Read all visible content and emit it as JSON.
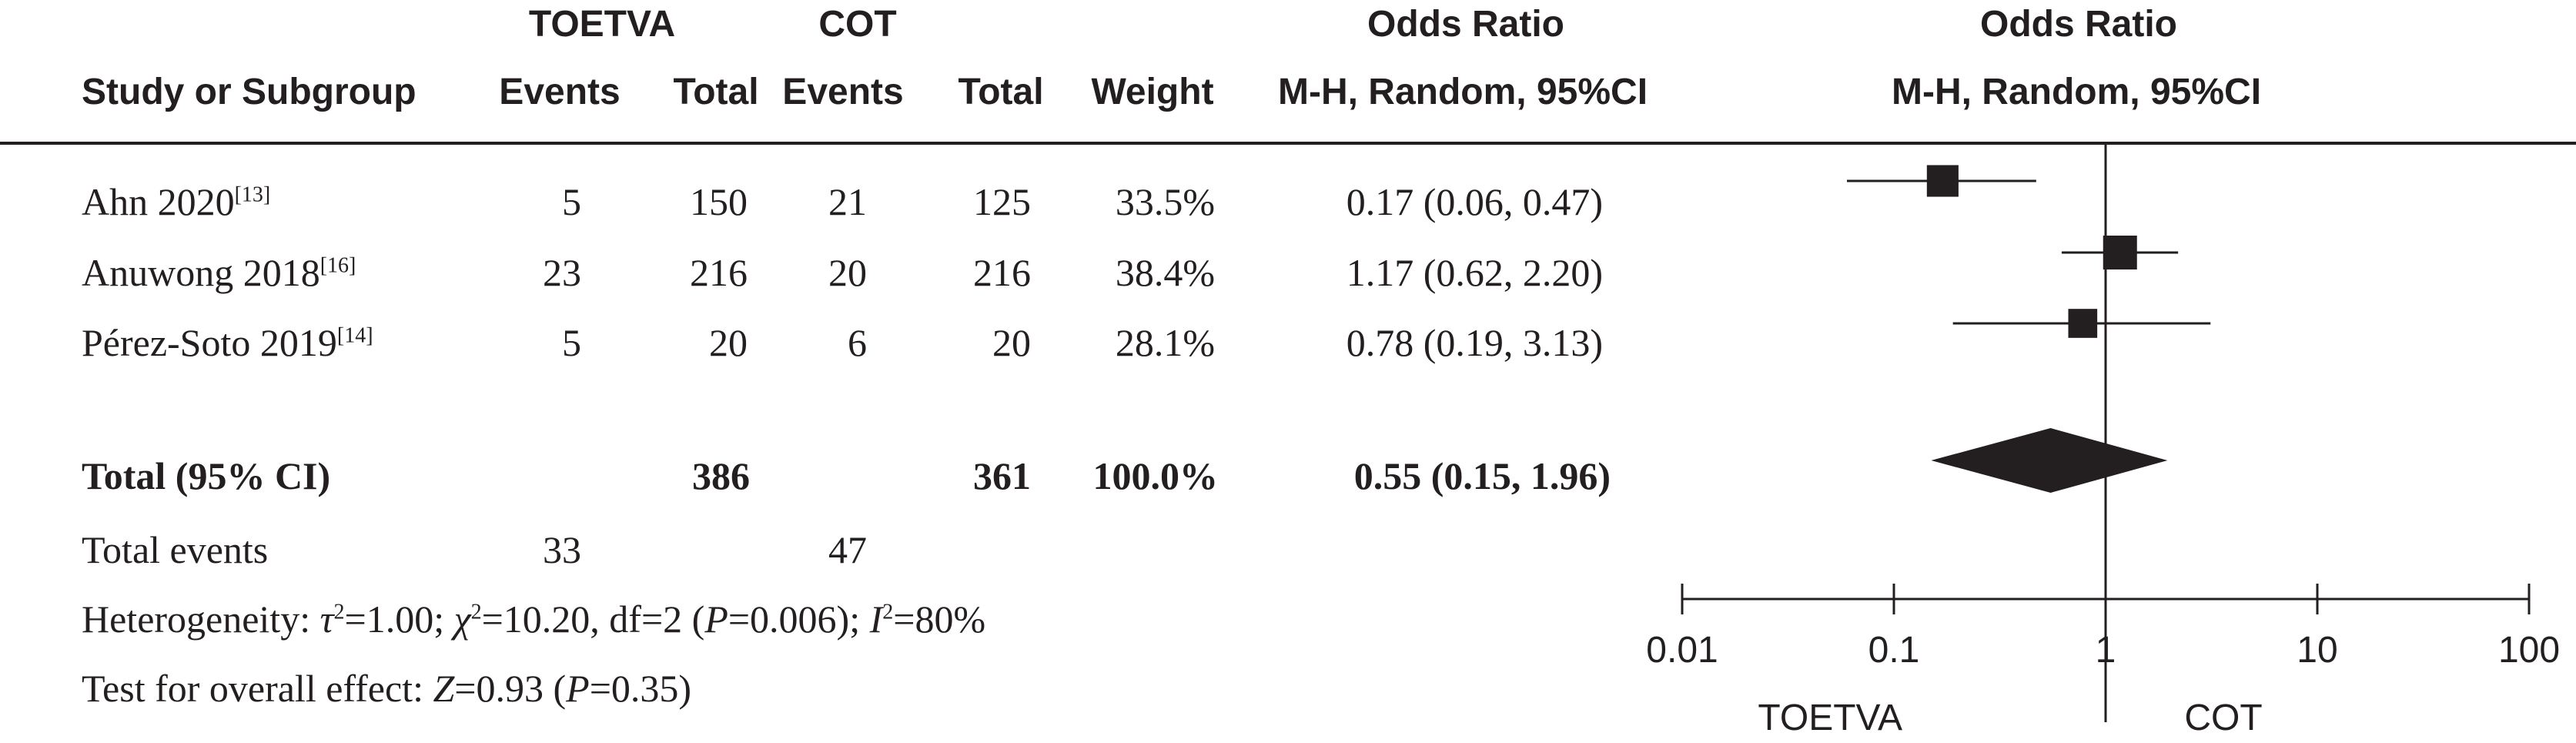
{
  "columns": {
    "group1": "TOETVA",
    "group2": "COT",
    "or_title": "Odds Ratio",
    "study": "Study or Subgroup",
    "events1": "Events",
    "total1": "Total",
    "events2": "Events",
    "total2": "Total",
    "weight": "Weight",
    "method": "M-H, Random, 95%CI",
    "plot_title": "Odds Ratio",
    "plot_method": "M-H, Random, 95%CI"
  },
  "studies": [
    {
      "name": "Ahn 2020",
      "ref": "[13]",
      "events1": "5",
      "total1": "150",
      "events2": "21",
      "total2": "125",
      "weight": "33.5%",
      "ci_text": "0.17 (0.06, 0.47)"
    },
    {
      "name": "Anuwong 2018",
      "ref": "[16]",
      "events1": "23",
      "total1": "216",
      "events2": "20",
      "total2": "216",
      "weight": "38.4%",
      "ci_text": "1.17 (0.62, 2.20)"
    },
    {
      "name": "Pérez-Soto 2019",
      "ref": "[14]",
      "events1": "5",
      "total1": "20",
      "events2": "6",
      "total2": "20",
      "weight": "28.1%",
      "ci_text": "0.78 (0.19, 3.13)"
    }
  ],
  "total": {
    "label": "Total (95% CI)",
    "total1": "386",
    "total2": "361",
    "weight": "100.0%",
    "ci_text": "0.55 (0.15, 1.96)"
  },
  "total_events": {
    "label": "Total events",
    "events1": "33",
    "events2": "47"
  },
  "heterogeneity": {
    "prefix": "Heterogeneity: ",
    "tau_sym": "τ",
    "tau_val": "=1.00; ",
    "chi_sym": "χ",
    "chi_val": "=10.20, df=2 (",
    "p_sym": "P",
    "p_val": "=0.006); ",
    "i_sym": "I",
    "i_val": "=80%"
  },
  "overall": {
    "prefix": "Test for overall effect: ",
    "z_sym": "Z",
    "z_val": "=0.93 (",
    "p_sym": "P",
    "p_val": "=0.35)"
  },
  "chart_data": {
    "type": "forest",
    "scale": "log",
    "xlim": [
      0.01,
      100
    ],
    "ticks": [
      "0.01",
      "0.1",
      "1",
      "10",
      "100"
    ],
    "favours_left": "TOETVA",
    "favours_right": "COT",
    "points": [
      {
        "study": "Ahn 2020",
        "or": 0.17,
        "lo": 0.06,
        "hi": 0.47,
        "weight": 33.5
      },
      {
        "study": "Anuwong 2018",
        "or": 1.17,
        "lo": 0.62,
        "hi": 2.2,
        "weight": 38.4
      },
      {
        "study": "Pérez-Soto 2019",
        "or": 0.78,
        "lo": 0.19,
        "hi": 3.13,
        "weight": 28.1
      }
    ],
    "pooled": {
      "or": 0.55,
      "lo": 0.15,
      "hi": 1.96
    },
    "colors": {
      "ink": "#231f20"
    }
  }
}
